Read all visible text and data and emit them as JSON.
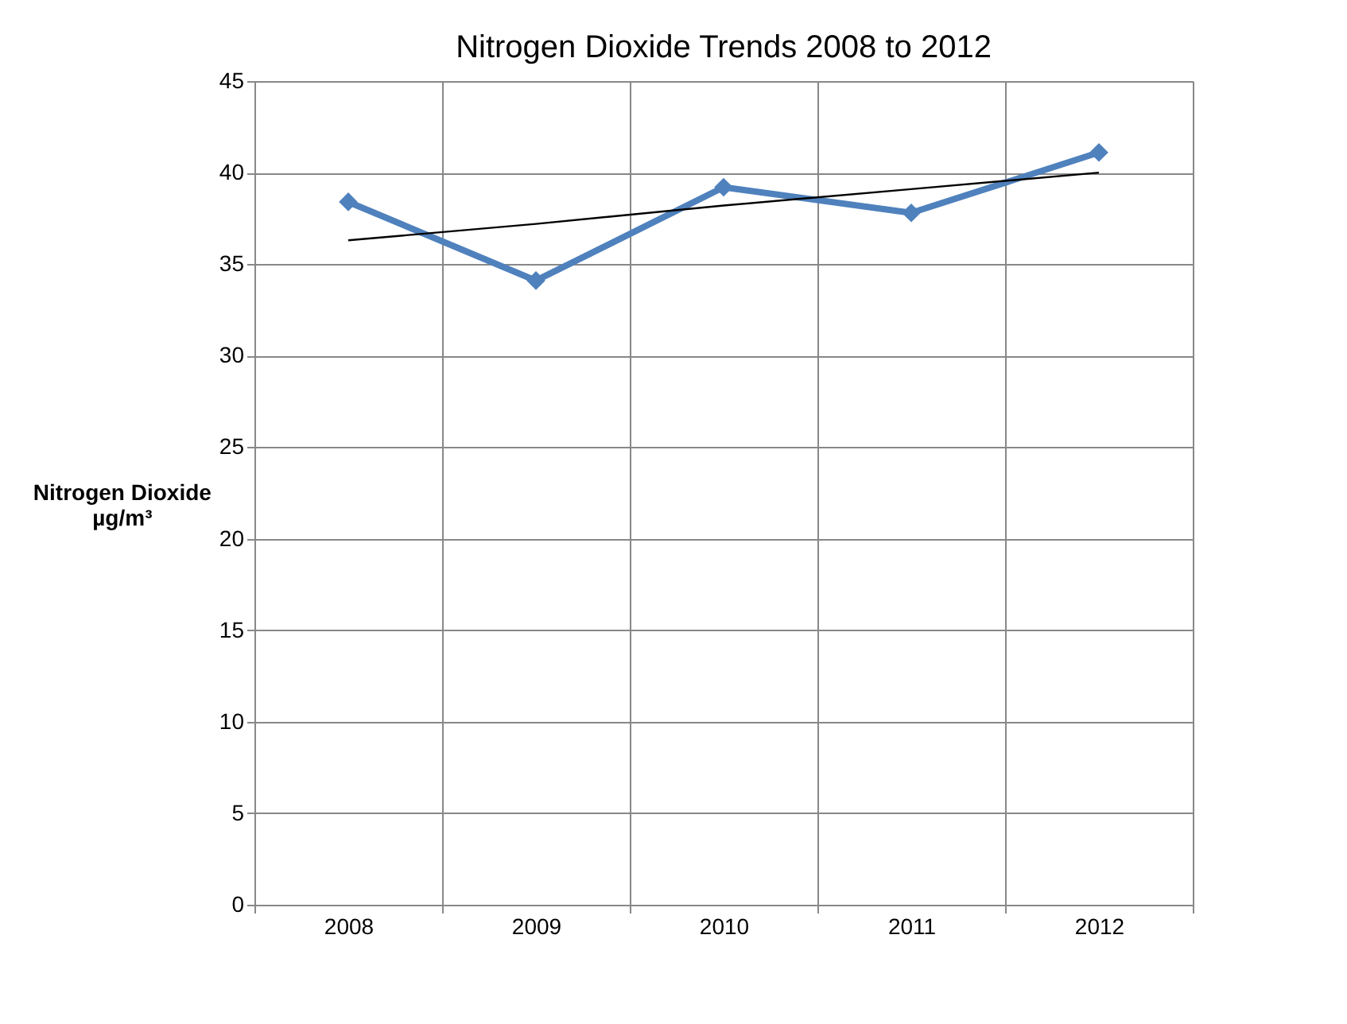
{
  "chart_data": {
    "type": "line",
    "title": "Nitrogen Dioxide Trends 2008 to 2012",
    "ylabel": "Nitrogen Dioxide\nµg/m³",
    "categories": [
      "2008",
      "2009",
      "2010",
      "2011",
      "2012"
    ],
    "series": [
      {
        "color": "#4f81bd",
        "values": [
          38.4,
          34.1,
          39.2,
          37.8,
          41.1
        ],
        "marker": "diamond",
        "line_style": "solid"
      },
      {
        "type": "line",
        "color": "#000000",
        "values": [
          36.3,
          37.2,
          38.2,
          39.1,
          40.0
        ],
        "marker": "none",
        "line_style": "solid"
      }
    ],
    "ylim": [
      0,
      45
    ],
    "yticks": [
      0,
      5,
      10,
      15,
      20,
      25,
      30,
      35,
      40,
      45
    ],
    "grid": true
  }
}
